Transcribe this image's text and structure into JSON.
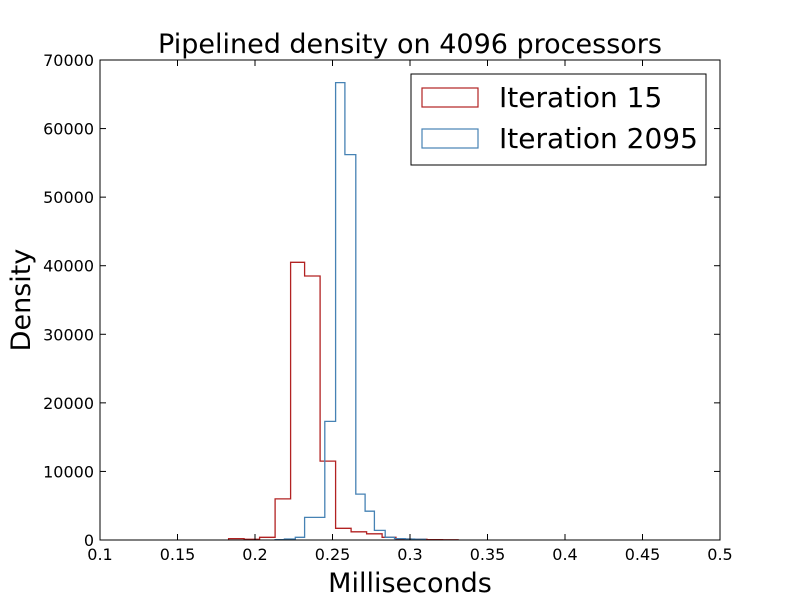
{
  "chart_data": {
    "type": "histogram",
    "title": "Pipelined density on 4096 processors",
    "xlabel": "Milliseconds",
    "ylabel": "Density",
    "xlim": [
      0.1,
      0.5
    ],
    "ylim": [
      0,
      70000
    ],
    "xticks": [
      {
        "value": 0.1,
        "label": "0.1"
      },
      {
        "value": 0.15,
        "label": "0.15"
      },
      {
        "value": 0.2,
        "label": "0.2"
      },
      {
        "value": 0.25,
        "label": "0.25"
      },
      {
        "value": 0.3,
        "label": "0.3"
      },
      {
        "value": 0.35,
        "label": "0.35"
      },
      {
        "value": 0.4,
        "label": "0.4"
      },
      {
        "value": 0.45,
        "label": "0.45"
      },
      {
        "value": 0.5,
        "label": "0.5"
      }
    ],
    "yticks": [
      {
        "value": 0,
        "label": "0"
      },
      {
        "value": 10000,
        "label": "10000"
      },
      {
        "value": 20000,
        "label": "20000"
      },
      {
        "value": 30000,
        "label": "30000"
      },
      {
        "value": 40000,
        "label": "40000"
      },
      {
        "value": 50000,
        "label": "50000"
      },
      {
        "value": 60000,
        "label": "60000"
      },
      {
        "value": 70000,
        "label": "70000"
      }
    ],
    "legend_position": "top-right",
    "series": [
      {
        "name": "Iteration 15",
        "color": "#b22222",
        "bin_edges": [
          0.183,
          0.193,
          0.203,
          0.213,
          0.223,
          0.232,
          0.242,
          0.252,
          0.262,
          0.272,
          0.282,
          0.291,
          0.301,
          0.311,
          0.321,
          0.331
        ],
        "values": [
          200,
          100,
          400,
          6000,
          40500,
          38500,
          11500,
          1700,
          1200,
          900,
          400,
          150,
          100,
          60,
          30
        ]
      },
      {
        "name": "Iteration 2095",
        "color": "#4682b4",
        "bin_edges": [
          0.213,
          0.219,
          0.226,
          0.232,
          0.239,
          0.245,
          0.252,
          0.258,
          0.265,
          0.271,
          0.277,
          0.284,
          0.29,
          0.297,
          0.303,
          0.31
        ],
        "values": [
          50,
          150,
          400,
          3300,
          3300,
          17300,
          66700,
          56200,
          6700,
          4200,
          1400,
          400,
          200,
          150,
          100
        ]
      }
    ]
  }
}
